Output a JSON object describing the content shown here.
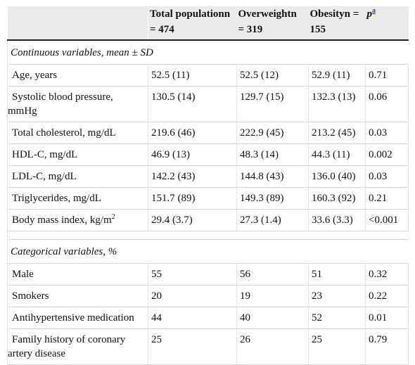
{
  "table": {
    "header": {
      "col1": "",
      "col2_line1": "Total populationn",
      "col2_line2": "= 474",
      "col3_line1": "Overweightn",
      "col3_line2": "= 319",
      "col4_line1": "Obesityn =",
      "col4_line2": "155",
      "col5_label": "p",
      "col5_footnote": "a"
    },
    "sections": [
      {
        "title": "Continuous variables, mean ± SD",
        "rows": [
          {
            "label": "Age, years",
            "total": "52.5 (11)",
            "overweight": "52.5 (12)",
            "obesity": "52.9 (11)",
            "p": "0.71"
          },
          {
            "label_line1": "Systolic blood pressure,",
            "label_line2": "mmHg",
            "total": "130.5 (14)",
            "overweight": "129.7 (15)",
            "obesity": "132.3 (13)",
            "p": "0.06"
          },
          {
            "label": "Total cholesterol, mg/dL",
            "total": "219.6 (46)",
            "overweight": "222.9 (45)",
            "obesity": "213.2 (45)",
            "p": "0.03"
          },
          {
            "label": "HDL-C, mg/dL",
            "total": "46.9 (13)",
            "overweight": "48.3 (14)",
            "obesity": "44.3 (11)",
            "p": "0.002"
          },
          {
            "label": "LDL-C, mg/dL",
            "total": "142.2 (43)",
            "overweight": "144.8 (43)",
            "obesity": "136.0 (40)",
            "p": "0.03"
          },
          {
            "label": "Triglycerides, mg/dL",
            "total": "151.7 (89)",
            "overweight": "149.3 (89)",
            "obesity": "160.3 (92)",
            "p": "0.21"
          },
          {
            "label": "Body mass index, kg/m",
            "label_sup": "2",
            "total": "29.4 (3.7)",
            "overweight": "27.3 (1.4)",
            "obesity": "33.6 (3.3)",
            "p": "<0.001"
          }
        ]
      },
      {
        "title": "Categorical variables, %",
        "rows": [
          {
            "label": "Male",
            "total": "55",
            "overweight": "56",
            "obesity": "51",
            "p": "0.32"
          },
          {
            "label": "Smokers",
            "total": "20",
            "overweight": "19",
            "obesity": "23",
            "p": "0.22"
          },
          {
            "label": "Antihypertensive medication",
            "total": "44",
            "overweight": "40",
            "obesity": "52",
            "p": "0.01"
          },
          {
            "label_line1": "Family history of coronary",
            "label_line2": "artery disease",
            "total": "25",
            "overweight": "26",
            "obesity": "25",
            "p": "0.79"
          }
        ]
      }
    ]
  }
}
